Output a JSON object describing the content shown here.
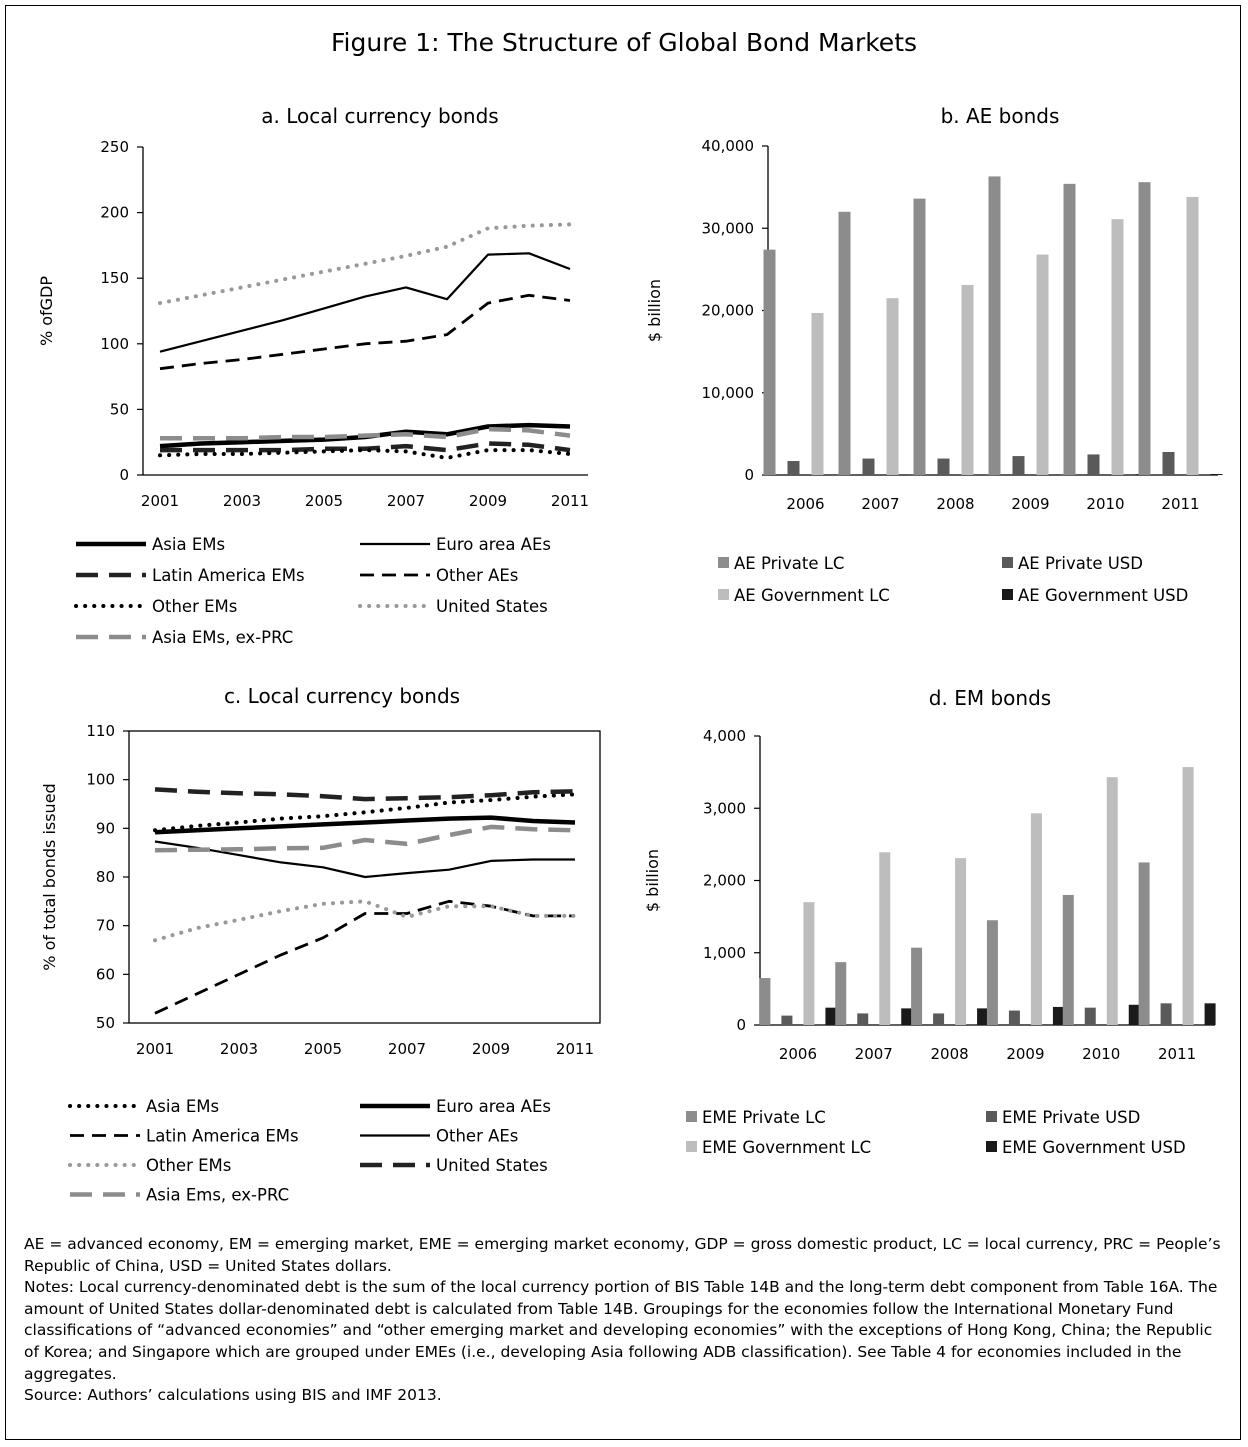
{
  "figure": {
    "title": "Figure 1: The Structure of Global Bond Markets"
  },
  "chart_data": [
    {
      "id": "a",
      "type": "line",
      "title": "a. Local currency bonds",
      "xlabel": "",
      "ylabel": "% ofGDP",
      "x": [
        2001,
        2002,
        2003,
        2004,
        2005,
        2006,
        2007,
        2008,
        2009,
        2010,
        2011
      ],
      "x_tick_labels": [
        "2001",
        "2003",
        "2005",
        "2007",
        "2009",
        "2011"
      ],
      "ylim": [
        0,
        250
      ],
      "y_ticks": [
        0,
        50,
        100,
        150,
        200,
        250
      ],
      "grid": false,
      "legend_position": "bottom",
      "series": [
        {
          "name": "Asia EMs",
          "style": "solid-thick",
          "color": "#000000",
          "values": [
            22,
            24,
            25,
            26,
            27,
            29,
            33,
            31,
            37,
            38,
            37
          ]
        },
        {
          "name": "Euro area AEs",
          "style": "solid-thin",
          "color": "#000000",
          "values": [
            94,
            102,
            110,
            118,
            127,
            136,
            143,
            134,
            168,
            169,
            157
          ]
        },
        {
          "name": "Latin America EMs",
          "style": "dash-long",
          "color": "#222222",
          "values": [
            19,
            19,
            19,
            19,
            20,
            20,
            22,
            19,
            24,
            23,
            19
          ]
        },
        {
          "name": "Other AEs",
          "style": "dash-short",
          "color": "#000000",
          "values": [
            81,
            85,
            88,
            92,
            96,
            100,
            102,
            107,
            131,
            137,
            133
          ]
        },
        {
          "name": "Other EMs",
          "style": "dot",
          "color": "#000000",
          "values": [
            15,
            16,
            16,
            17,
            18,
            19,
            18,
            13,
            19,
            19,
            16
          ]
        },
        {
          "name": "United States",
          "style": "dot-light",
          "color": "#999999",
          "values": [
            131,
            137,
            143,
            149,
            155,
            161,
            167,
            174,
            188,
            190,
            191
          ]
        },
        {
          "name": "Asia EMs, ex-PRC",
          "style": "dash-gray",
          "color": "#8c8c8c",
          "values": [
            28,
            28,
            28,
            29,
            29,
            30,
            31,
            29,
            35,
            34,
            30
          ]
        }
      ]
    },
    {
      "id": "b",
      "type": "bar",
      "title": "b. AE bonds",
      "ylabel": "$ billion",
      "categories": [
        "2006",
        "2007",
        "2008",
        "2009",
        "2010",
        "2011"
      ],
      "ylim": [
        0,
        40000
      ],
      "y_ticks": [
        0,
        10000,
        20000,
        30000,
        40000
      ],
      "y_tick_labels": [
        "0",
        "10,000",
        "20,000",
        "30,000",
        "40,000"
      ],
      "grid": false,
      "legend_position": "bottom",
      "series": [
        {
          "name": "AE Private LC",
          "color": "#8c8c8c",
          "values": [
            27400,
            32000,
            33600,
            36300,
            35400,
            35600
          ]
        },
        {
          "name": "AE Private USD",
          "color": "#5a5a5a",
          "values": [
            1700,
            2000,
            2000,
            2300,
            2500,
            2800
          ]
        },
        {
          "name": "AE Government LC",
          "color": "#bdbdbd",
          "values": [
            19700,
            21500,
            23100,
            26800,
            31100,
            33800
          ]
        },
        {
          "name": "AE Government USD",
          "color": "#1a1a1a",
          "values": [
            50,
            50,
            60,
            60,
            100,
            120
          ]
        }
      ]
    },
    {
      "id": "c",
      "type": "line",
      "title": "c. Local currency bonds",
      "ylabel": "% of total bonds issued",
      "x": [
        2001,
        2002,
        2003,
        2004,
        2005,
        2006,
        2007,
        2008,
        2009,
        2010,
        2011
      ],
      "x_tick_labels": [
        "2001",
        "2003",
        "2005",
        "2007",
        "2009",
        "2011"
      ],
      "ylim": [
        50,
        110
      ],
      "y_ticks": [
        50,
        60,
        70,
        80,
        90,
        100,
        110
      ],
      "grid": false,
      "legend_position": "bottom",
      "series": [
        {
          "name": "Asia EMs",
          "style": "dot",
          "color": "#000000",
          "values": [
            89.6,
            90.5,
            91.2,
            92,
            92.5,
            93.3,
            94.2,
            95.3,
            95.8,
            96.5,
            97.0
          ]
        },
        {
          "name": "Euro area AEs",
          "style": "solid-thick",
          "color": "#000000",
          "values": [
            89.2,
            89.6,
            90,
            90.4,
            90.8,
            91.2,
            91.6,
            92,
            92.2,
            91.5,
            91.2
          ]
        },
        {
          "name": "Latin America EMs",
          "style": "dash-short",
          "color": "#000000",
          "values": [
            52,
            56,
            60,
            64,
            67.5,
            72.5,
            72.5,
            75,
            74,
            72,
            72
          ]
        },
        {
          "name": "Other AEs",
          "style": "solid-thin",
          "color": "#000000",
          "values": [
            87.3,
            86,
            84.5,
            83,
            82,
            80,
            80.8,
            81.5,
            83.3,
            83.6,
            83.6
          ]
        },
        {
          "name": "Other EMs",
          "style": "dot-light",
          "color": "#999999",
          "values": [
            67,
            69.5,
            71.2,
            73,
            74.5,
            75,
            71.8,
            74,
            74,
            72,
            72
          ]
        },
        {
          "name": "United States",
          "style": "dash-long",
          "color": "#222222",
          "values": [
            98,
            97.5,
            97.2,
            97,
            96.6,
            96,
            96.2,
            96.4,
            96.8,
            97.4,
            97.6
          ]
        },
        {
          "name": "Asia Ems, ex-PRC",
          "style": "dash-gray",
          "color": "#8c8c8c",
          "values": [
            85.5,
            85.6,
            85.7,
            85.9,
            86,
            87.6,
            86.8,
            88.6,
            90.3,
            89.8,
            89.6
          ]
        }
      ]
    },
    {
      "id": "d",
      "type": "bar",
      "title": "d. EM bonds",
      "ylabel": "$ billion",
      "categories": [
        "2006",
        "2007",
        "2008",
        "2009",
        "2010",
        "2011"
      ],
      "ylim": [
        0,
        4000
      ],
      "y_ticks": [
        0,
        1000,
        2000,
        3000,
        4000
      ],
      "y_tick_labels": [
        "0",
        "1,000",
        "2,000",
        "3,000",
        "4,000"
      ],
      "grid": false,
      "legend_position": "bottom",
      "series": [
        {
          "name": "EME Private LC",
          "color": "#8c8c8c",
          "values": [
            650,
            870,
            1070,
            1450,
            1800,
            2250
          ]
        },
        {
          "name": "EME Private USD",
          "color": "#5a5a5a",
          "values": [
            130,
            160,
            160,
            200,
            240,
            300
          ]
        },
        {
          "name": "EME Government LC",
          "color": "#bdbdbd",
          "values": [
            1700,
            2390,
            2310,
            2930,
            3430,
            3570
          ]
        },
        {
          "name": "EME Government USD",
          "color": "#1a1a1a",
          "values": [
            240,
            230,
            230,
            250,
            280,
            300
          ]
        }
      ]
    }
  ],
  "notes": {
    "abbreviations": "AE = advanced economy, EM = emerging market, EME = emerging market economy, GDP = gross domestic product, LC = local currency, PRC = People’s Republic of China, USD = United States dollars.",
    "notes": "Notes: Local currency-denominated debt is the sum of the local currency portion of BIS Table 14B and the long-term debt component from Table 16A. The amount of United States dollar-denominated debt is calculated from Table 14B. Groupings for the economies follow the International Monetary Fund classifications of “advanced economies” and “other emerging market and developing economies” with the exceptions of Hong Kong, China; the Republic of Korea; and Singapore which are grouped under EMEs (i.e., developing Asia following ADB classification).  See Table 4 for economies included in the aggregates.",
    "source": "Source: Authors’ calculations using BIS and IMF 2013."
  }
}
